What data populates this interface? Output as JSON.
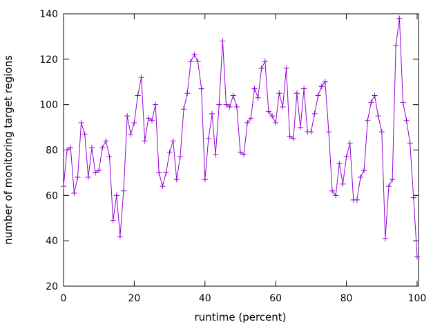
{
  "chart_data": {
    "type": "line",
    "title": "",
    "xlabel": "runtime (percent)",
    "ylabel": "number of monitoring target regions",
    "xlim": [
      0,
      100
    ],
    "ylim": [
      20,
      140
    ],
    "xticks": [
      0,
      20,
      40,
      60,
      80,
      100
    ],
    "yticks": [
      20,
      40,
      60,
      80,
      100,
      120,
      140
    ],
    "grid": false,
    "legend": "none",
    "marker": "plus",
    "line_color": "#9400d3",
    "axis_color": "#000000",
    "background_color": "#ffffff",
    "x": [
      0,
      1,
      2,
      3,
      4,
      5,
      6,
      7,
      8,
      9,
      10,
      11,
      12,
      13,
      14,
      15,
      16,
      17,
      18,
      19,
      20,
      21,
      22,
      23,
      24,
      25,
      26,
      27,
      28,
      29,
      30,
      31,
      32,
      33,
      34,
      35,
      36,
      37,
      38,
      39,
      40,
      41,
      42,
      43,
      44,
      45,
      46,
      47,
      48,
      49,
      50,
      51,
      52,
      53,
      54,
      55,
      56,
      57,
      58,
      59,
      60,
      61,
      62,
      63,
      64,
      65,
      66,
      67,
      68,
      69,
      70,
      71,
      72,
      73,
      74,
      75,
      76,
      77,
      78,
      79,
      80,
      81,
      82,
      83,
      84,
      85,
      86,
      87,
      88,
      89,
      90,
      91,
      92,
      93,
      94,
      95,
      96,
      97,
      98,
      99,
      100
    ],
    "values": [
      64,
      80,
      81,
      61,
      68,
      92,
      87,
      68,
      81,
      70,
      71,
      81,
      84,
      77,
      49,
      60,
      42,
      62,
      95,
      87,
      92,
      104,
      112,
      84,
      94,
      93,
      100,
      70,
      64,
      70,
      79,
      84,
      67,
      77,
      98,
      105,
      119,
      122,
      119,
      107,
      67,
      85,
      96,
      78,
      100,
      128,
      100,
      99,
      104,
      99,
      79,
      78,
      92,
      94,
      107,
      103,
      116,
      119,
      97,
      95,
      92,
      105,
      99,
      116,
      86,
      85,
      105,
      90,
      107,
      88,
      88,
      96,
      104,
      108,
      110,
      88,
      62,
      60,
      74,
      65,
      77,
      83,
      58,
      58,
      68,
      71,
      93,
      101,
      104,
      95,
      88,
      41,
      64,
      67,
      126,
      138,
      101,
      93,
      83,
      59,
      33
    ]
  }
}
